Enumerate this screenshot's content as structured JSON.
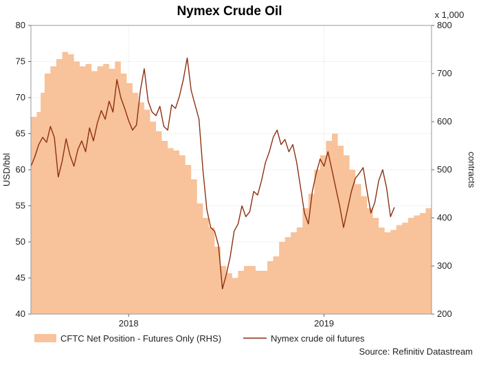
{
  "chart_data": {
    "type": "area+line",
    "title": "Nymex Crude Oil",
    "ylabel_left": "USD/bbl",
    "ylabel_right": "contracts",
    "right_multiplier": "x 1,000",
    "source": "Source: Refinitiv Datastream",
    "left_axis": {
      "min": 40,
      "max": 80,
      "ticks": [
        "80",
        "75",
        "70",
        "65",
        "60",
        "55",
        "50",
        "45",
        "40"
      ]
    },
    "right_axis": {
      "min": 200,
      "max": 800,
      "ticks": [
        "800",
        "700",
        "600",
        "500",
        "400",
        "300",
        "200"
      ]
    },
    "x_axis": {
      "min": 2017.5,
      "max": 2019.55,
      "ticks": [
        {
          "value": 2018.0,
          "label": "2018"
        },
        {
          "value": 2019.0,
          "label": "2019"
        }
      ],
      "grid": true
    },
    "legend_position": "bottom",
    "series": [
      {
        "name": "CFTC Net Position - Futures Only (RHS)",
        "type": "area",
        "axis": "right",
        "color": "#f8c29a",
        "points": [
          [
            2017.5,
            610
          ],
          [
            2017.53,
            620
          ],
          [
            2017.55,
            660
          ],
          [
            2017.57,
            700
          ],
          [
            2017.6,
            715
          ],
          [
            2017.63,
            730
          ],
          [
            2017.66,
            745
          ],
          [
            2017.69,
            740
          ],
          [
            2017.72,
            725
          ],
          [
            2017.75,
            715
          ],
          [
            2017.78,
            720
          ],
          [
            2017.81,
            705
          ],
          [
            2017.84,
            715
          ],
          [
            2017.87,
            720
          ],
          [
            2017.9,
            710
          ],
          [
            2017.93,
            725
          ],
          [
            2017.96,
            700
          ],
          [
            2017.99,
            680
          ],
          [
            2018.02,
            660
          ],
          [
            2018.05,
            640
          ],
          [
            2018.08,
            625
          ],
          [
            2018.11,
            600
          ],
          [
            2018.14,
            580
          ],
          [
            2018.17,
            560
          ],
          [
            2018.2,
            545
          ],
          [
            2018.23,
            540
          ],
          [
            2018.26,
            530
          ],
          [
            2018.29,
            510
          ],
          [
            2018.32,
            480
          ],
          [
            2018.35,
            430
          ],
          [
            2018.38,
            400
          ],
          [
            2018.41,
            380
          ],
          [
            2018.44,
            340
          ],
          [
            2018.47,
            300
          ],
          [
            2018.5,
            285
          ],
          [
            2018.53,
            275
          ],
          [
            2018.56,
            290
          ],
          [
            2018.59,
            300
          ],
          [
            2018.62,
            300
          ],
          [
            2018.65,
            290
          ],
          [
            2018.68,
            290
          ],
          [
            2018.71,
            310
          ],
          [
            2018.74,
            320
          ],
          [
            2018.77,
            350
          ],
          [
            2018.8,
            360
          ],
          [
            2018.83,
            370
          ],
          [
            2018.86,
            380
          ],
          [
            2018.89,
            420
          ],
          [
            2018.92,
            450
          ],
          [
            2018.95,
            500
          ],
          [
            2018.98,
            530
          ],
          [
            2019.01,
            560
          ],
          [
            2019.04,
            575
          ],
          [
            2019.07,
            550
          ],
          [
            2019.1,
            530
          ],
          [
            2019.13,
            500
          ],
          [
            2019.16,
            470
          ],
          [
            2019.19,
            445
          ],
          [
            2019.22,
            420
          ],
          [
            2019.25,
            400
          ],
          [
            2019.28,
            380
          ],
          [
            2019.31,
            370
          ],
          [
            2019.34,
            375
          ],
          [
            2019.37,
            385
          ],
          [
            2019.4,
            390
          ],
          [
            2019.43,
            400
          ],
          [
            2019.46,
            405
          ],
          [
            2019.49,
            410
          ],
          [
            2019.52,
            420
          ],
          [
            2019.55,
            430
          ]
        ]
      },
      {
        "name": "Nymex crude oil futures",
        "type": "line",
        "axis": "left",
        "color": "#8b2f0f",
        "points": [
          [
            2017.5,
            60.5
          ],
          [
            2017.52,
            61.8
          ],
          [
            2017.54,
            63.5
          ],
          [
            2017.56,
            64.5
          ],
          [
            2017.58,
            63.8
          ],
          [
            2017.6,
            66.0
          ],
          [
            2017.62,
            64.5
          ],
          [
            2017.64,
            59.0
          ],
          [
            2017.66,
            61.2
          ],
          [
            2017.68,
            64.3
          ],
          [
            2017.7,
            62.0
          ],
          [
            2017.72,
            60.5
          ],
          [
            2017.74,
            62.8
          ],
          [
            2017.76,
            64.0
          ],
          [
            2017.78,
            62.5
          ],
          [
            2017.8,
            65.8
          ],
          [
            2017.82,
            64.0
          ],
          [
            2017.84,
            66.5
          ],
          [
            2017.86,
            68.2
          ],
          [
            2017.88,
            67.0
          ],
          [
            2017.9,
            69.5
          ],
          [
            2017.92,
            68.0
          ],
          [
            2017.94,
            72.5
          ],
          [
            2017.96,
            70.0
          ],
          [
            2017.98,
            68.5
          ],
          [
            2018.0,
            66.8
          ],
          [
            2018.02,
            65.5
          ],
          [
            2018.04,
            66.2
          ],
          [
            2018.06,
            71.0
          ],
          [
            2018.08,
            74.0
          ],
          [
            2018.1,
            69.5
          ],
          [
            2018.12,
            68.0
          ],
          [
            2018.14,
            67.5
          ],
          [
            2018.16,
            68.8
          ],
          [
            2018.18,
            66.0
          ],
          [
            2018.2,
            65.5
          ],
          [
            2018.22,
            69.0
          ],
          [
            2018.24,
            68.5
          ],
          [
            2018.26,
            70.2
          ],
          [
            2018.28,
            72.5
          ],
          [
            2018.3,
            75.5
          ],
          [
            2018.32,
            71.0
          ],
          [
            2018.34,
            69.0
          ],
          [
            2018.36,
            67.0
          ],
          [
            2018.38,
            60.0
          ],
          [
            2018.4,
            54.5
          ],
          [
            2018.42,
            52.0
          ],
          [
            2018.44,
            51.5
          ],
          [
            2018.46,
            49.5
          ],
          [
            2018.48,
            43.5
          ],
          [
            2018.5,
            45.5
          ],
          [
            2018.52,
            48.0
          ],
          [
            2018.54,
            51.5
          ],
          [
            2018.56,
            52.5
          ],
          [
            2018.58,
            55.0
          ],
          [
            2018.6,
            53.5
          ],
          [
            2018.62,
            54.2
          ],
          [
            2018.64,
            57.0
          ],
          [
            2018.66,
            56.5
          ],
          [
            2018.68,
            58.5
          ],
          [
            2018.7,
            61.0
          ],
          [
            2018.72,
            62.5
          ],
          [
            2018.74,
            64.5
          ],
          [
            2018.76,
            65.5
          ],
          [
            2018.78,
            63.5
          ],
          [
            2018.8,
            64.2
          ],
          [
            2018.82,
            62.5
          ],
          [
            2018.84,
            63.5
          ],
          [
            2018.86,
            61.0
          ],
          [
            2018.88,
            57.5
          ],
          [
            2018.9,
            54.0
          ],
          [
            2018.92,
            52.5
          ],
          [
            2018.94,
            57.0
          ],
          [
            2018.96,
            59.5
          ],
          [
            2018.98,
            61.5
          ],
          [
            2019.0,
            60.5
          ],
          [
            2019.02,
            62.5
          ],
          [
            2019.04,
            60.0
          ],
          [
            2019.06,
            57.5
          ],
          [
            2019.08,
            55.0
          ],
          [
            2019.1,
            52.0
          ],
          [
            2019.12,
            54.5
          ],
          [
            2019.14,
            57.0
          ],
          [
            2019.16,
            58.8
          ],
          [
            2019.18,
            59.5
          ],
          [
            2019.2,
            60.3
          ],
          [
            2019.22,
            57.0
          ],
          [
            2019.24,
            54.0
          ],
          [
            2019.26,
            55.5
          ],
          [
            2019.28,
            58.5
          ],
          [
            2019.3,
            60.0
          ],
          [
            2019.32,
            57.5
          ],
          [
            2019.34,
            53.5
          ],
          [
            2019.36,
            54.8
          ]
        ]
      }
    ]
  }
}
